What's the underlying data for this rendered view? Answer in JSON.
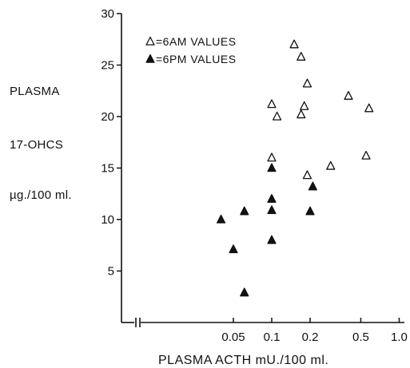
{
  "chart_data": {
    "type": "scatter",
    "title": "",
    "ylabel_lines": [
      "PLASMA",
      "17-OHCS",
      "µg./100 ml."
    ],
    "xlabel": "PLASMA ACTH mU./100 ml.",
    "x_scale": "log",
    "x_axis_break": true,
    "xticks": [
      0.05,
      0.1,
      0.2,
      0.5,
      1.0
    ],
    "xtick_labels": [
      "0.05",
      "0.1",
      "0.2",
      "0.5",
      "1.0"
    ],
    "yticks": [
      5,
      10,
      15,
      20,
      25,
      30
    ],
    "ylim": [
      0,
      30
    ],
    "legend_position": "top-left",
    "series": [
      {
        "name": "=6AM VALUES",
        "marker": "open-triangle",
        "points": [
          [
            0.15,
            27
          ],
          [
            0.17,
            25.8
          ],
          [
            0.19,
            23.2
          ],
          [
            0.1,
            21.2
          ],
          [
            0.11,
            20
          ],
          [
            0.17,
            20.2
          ],
          [
            0.18,
            21
          ],
          [
            0.4,
            22
          ],
          [
            0.58,
            20.8
          ],
          [
            0.1,
            16
          ],
          [
            0.19,
            14.3
          ],
          [
            0.29,
            15.2
          ],
          [
            0.55,
            16.2
          ]
        ]
      },
      {
        "name": "=6PM VALUES",
        "marker": "filled-triangle",
        "points": [
          [
            0.1,
            15
          ],
          [
            0.21,
            13.2
          ],
          [
            0.1,
            12
          ],
          [
            0.1,
            10.9
          ],
          [
            0.061,
            10.8
          ],
          [
            0.2,
            10.8
          ],
          [
            0.04,
            10
          ],
          [
            0.1,
            8
          ],
          [
            0.05,
            7.1
          ],
          [
            0.061,
            2.9
          ]
        ]
      }
    ]
  }
}
